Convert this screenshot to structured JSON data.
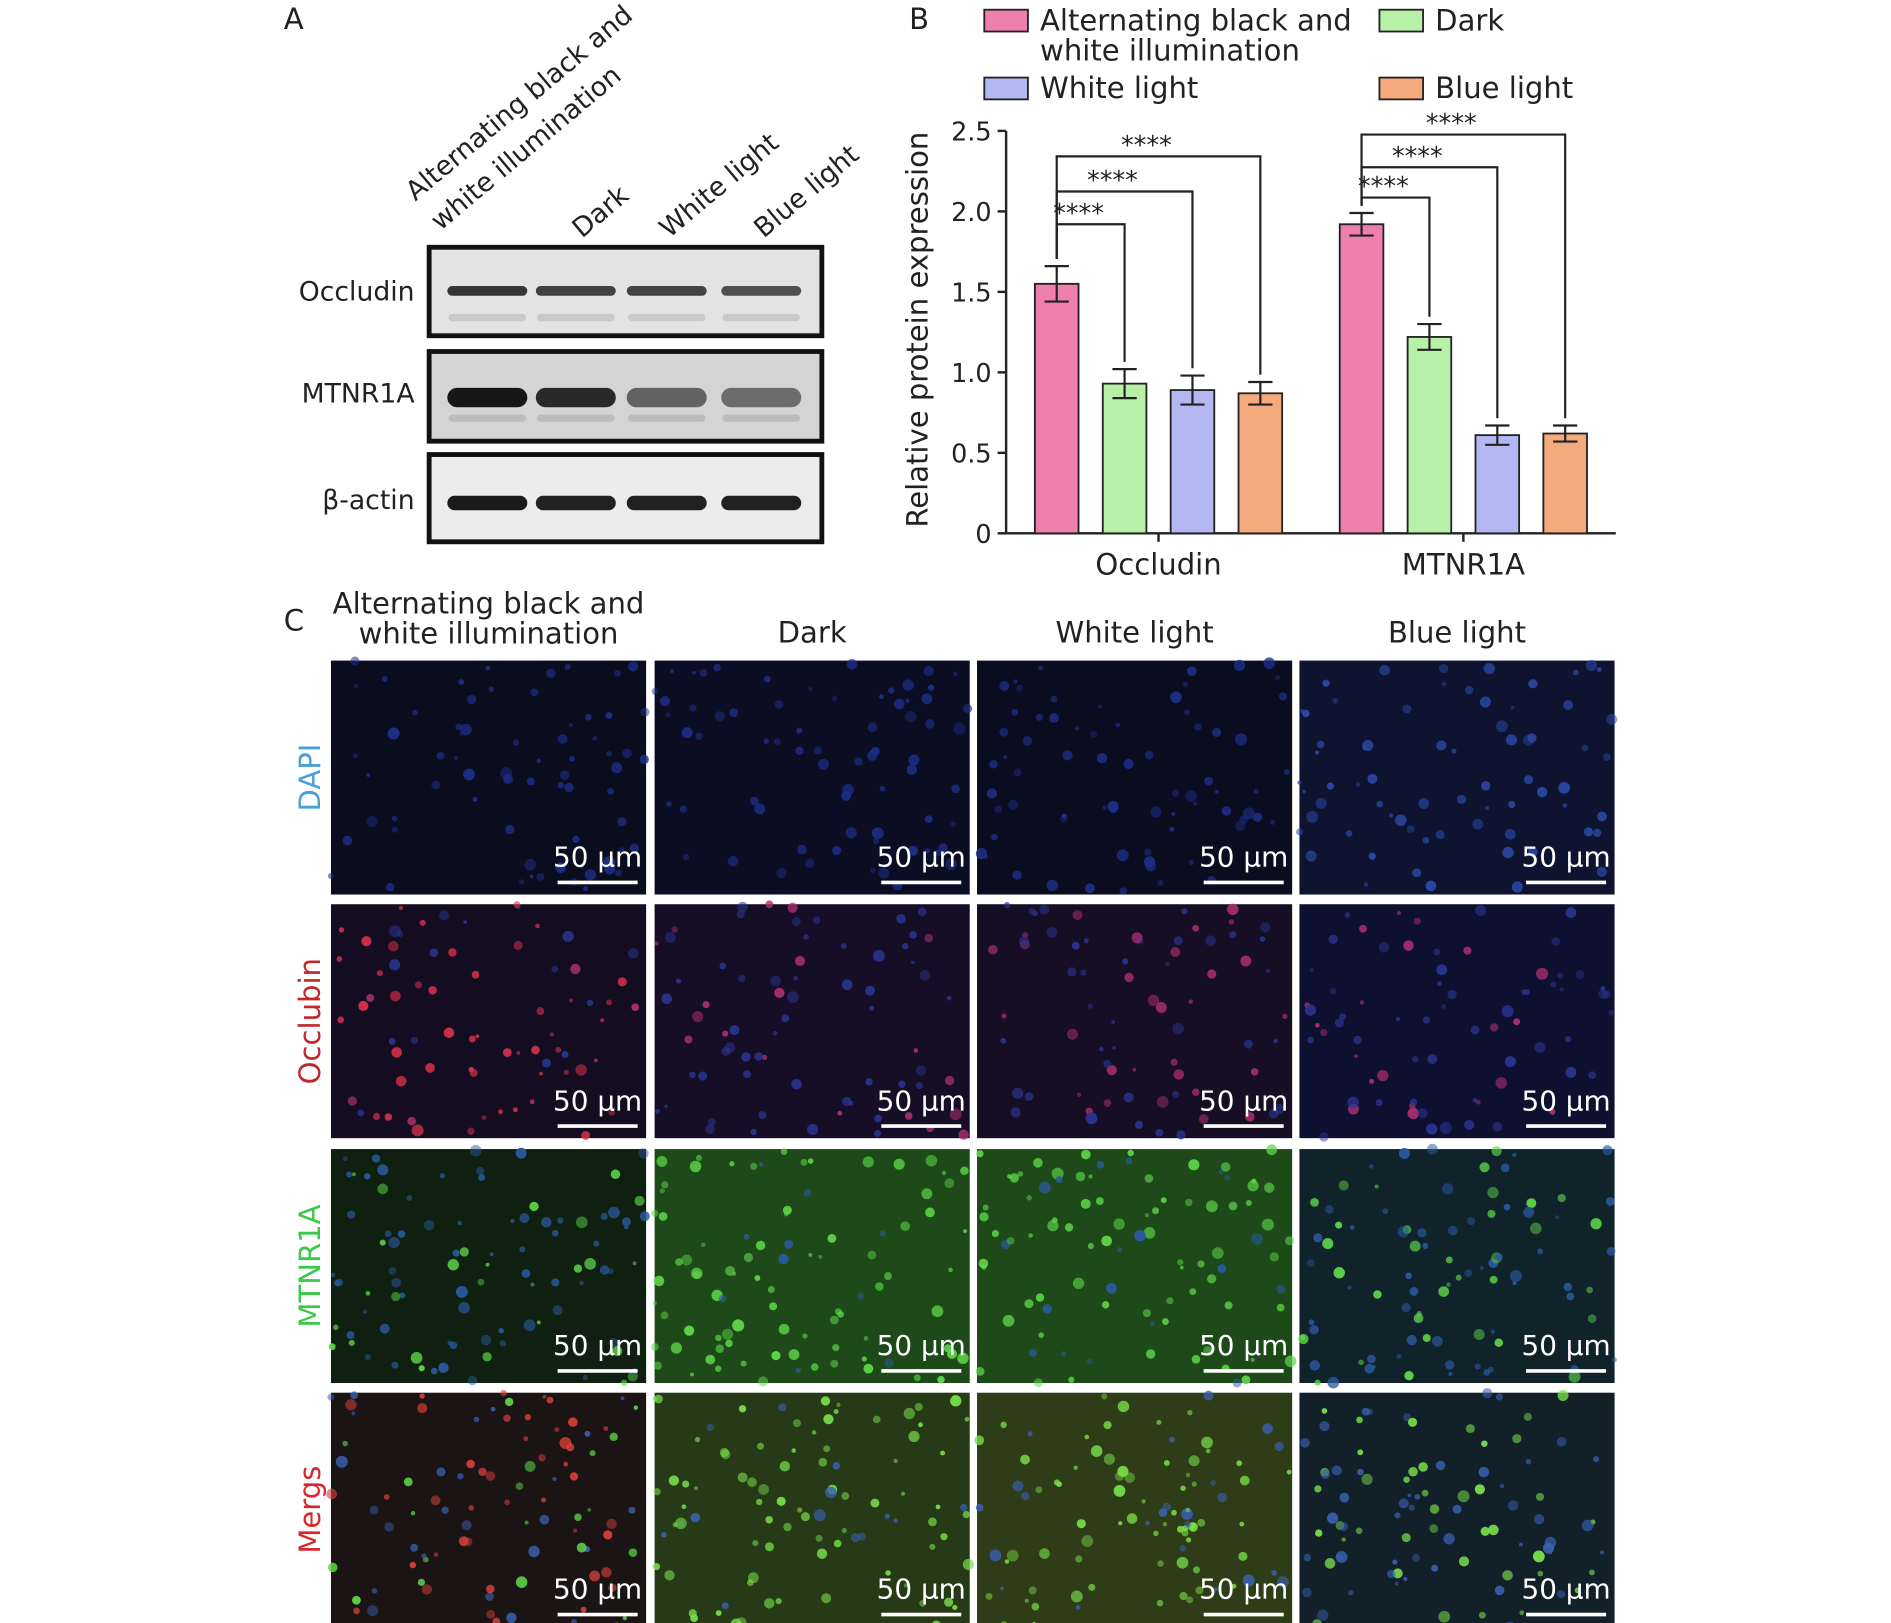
{
  "panel_a": {
    "label": "A",
    "lanes": [
      "Alternating black and white illumination",
      "Dark",
      "White light",
      "Blue light"
    ],
    "proteins": [
      "Occludin",
      "MTNR1A",
      "β-actin"
    ]
  },
  "chart_data": {
    "type": "bar",
    "label": "B",
    "ylabel": "Relative protein expression",
    "categories": [
      "Occludin",
      "MTNR1A"
    ],
    "series": [
      {
        "name": "Alternating black and white illumination",
        "color": "#ef7fae",
        "values": [
          1.55,
          1.92
        ],
        "errors": [
          0.11,
          0.07
        ]
      },
      {
        "name": "Dark",
        "color": "#b8f0a8",
        "values": [
          0.93,
          1.22
        ],
        "errors": [
          0.09,
          0.08
        ]
      },
      {
        "name": "White light",
        "color": "#b3b8f3",
        "values": [
          0.89,
          0.61
        ],
        "errors": [
          0.09,
          0.06
        ]
      },
      {
        "name": "Blue light",
        "color": "#f4aa7c",
        "values": [
          0.87,
          0.62
        ],
        "errors": [
          0.07,
          0.05
        ]
      }
    ],
    "ylim": [
      0,
      2.5
    ],
    "yticks": [
      0,
      {
        "value": 0.5,
        "label": "0.5"
      },
      {
        "value": 1,
        "label": "1.0"
      },
      1.5,
      {
        "value": 2,
        "label": "2.0"
      },
      2.5
    ],
    "significance": [
      {
        "category": 0,
        "from": 0,
        "to": 1,
        "label": "****"
      },
      {
        "category": 0,
        "from": 0,
        "to": 2,
        "label": "****"
      },
      {
        "category": 0,
        "from": 0,
        "to": 3,
        "label": "****"
      },
      {
        "category": 1,
        "from": 0,
        "to": 1,
        "label": "****"
      },
      {
        "category": 1,
        "from": 0,
        "to": 2,
        "label": "****"
      },
      {
        "category": 1,
        "from": 0,
        "to": 3,
        "label": "****"
      }
    ]
  },
  "panel_c": {
    "label": "C",
    "columns": [
      "Alternating black and white illumination",
      "Dark",
      "White light",
      "Blue light"
    ],
    "rows": [
      "DAPI",
      "Occlubin",
      "MTNR1A",
      "Mergs"
    ],
    "scale_bar": "50 µm"
  }
}
